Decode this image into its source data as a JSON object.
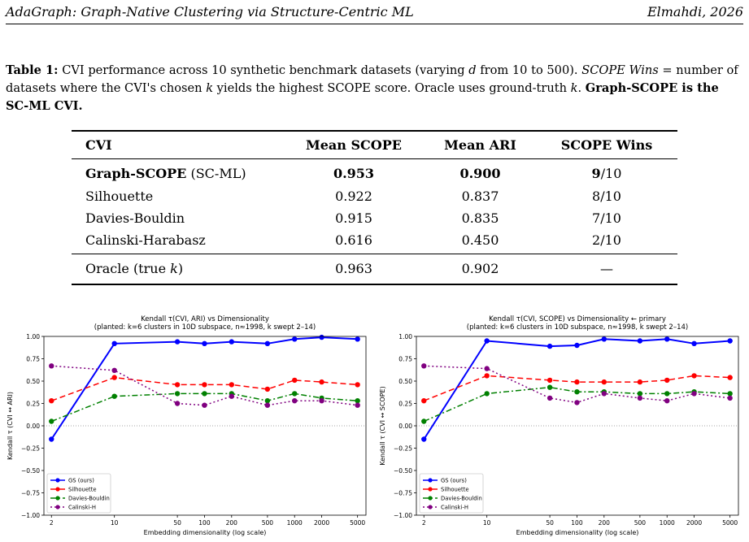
{
  "header": {
    "left": "AdaGraph: Graph-Native Clustering via Structure-Centric ML",
    "right": "Elmahdi, 2026"
  },
  "caption": {
    "label": "Table 1:",
    "t1": " CVI performance across 10 synthetic benchmark datasets (varying ",
    "d": "d",
    "t2": " from 10 to 500). ",
    "scope_wins": "SCOPE Wins",
    "t3": " = number of datasets where the CVI's chosen ",
    "k1": "k",
    "t4": " yields the highest SCOPE score. Oracle uses ground-truth ",
    "k2": "k",
    "t5": ". ",
    "bold": "Graph-SCOPE is the SC-ML CVI."
  },
  "table": {
    "headers": [
      "CVI",
      "Mean SCOPE",
      "Mean ARI",
      "SCOPE Wins"
    ],
    "rows": [
      {
        "name": "Graph-SCOPE",
        "suffix": " (SC-ML)",
        "scope": "0.953",
        "ari": "0.900",
        "wins": "9",
        "wins_suffix": "/10"
      },
      {
        "name": "Silhouette",
        "scope": "0.922",
        "ari": "0.837",
        "wins": "8/10"
      },
      {
        "name": "Davies-Bouldin",
        "scope": "0.915",
        "ari": "0.835",
        "wins": "7/10"
      },
      {
        "name": "Calinski-Harabasz",
        "scope": "0.616",
        "ari": "0.450",
        "wins": "2/10"
      }
    ],
    "oracle": {
      "name": "Oracle (true ",
      "k": "k",
      "close": ")",
      "scope": "0.963",
      "ari": "0.902",
      "wins": "—"
    }
  },
  "chart_data": [
    {
      "type": "line",
      "title": "Kendall τ(CVI, ARI) vs Dimensionality",
      "subtitle": "(planted: k=6 clusters in 10D subspace, n≈1998, k swept 2–14)",
      "xlabel": "Embedding dimensionality (log scale)",
      "ylabel": "Kendall τ  (CVI ↔ ARI)",
      "xscale": "log",
      "x": [
        2,
        10,
        50,
        100,
        200,
        500,
        1000,
        2000,
        5000
      ],
      "xticks": [
        "2",
        "10",
        "50",
        "100",
        "200",
        "500",
        "1000",
        "2000",
        "5000"
      ],
      "ylim": [
        -1.0,
        1.0
      ],
      "yticks": [
        "1.00",
        "0.75",
        "0.50",
        "0.25",
        "0.00",
        "−0.25",
        "−0.50",
        "−0.75",
        "−1.00"
      ],
      "legend_position": "lower-left",
      "series": [
        {
          "name": "GS (ours)",
          "color": "#0000ff",
          "style": "solid",
          "values": [
            -0.15,
            0.92,
            0.94,
            0.92,
            0.94,
            0.92,
            0.97,
            0.99,
            0.97
          ]
        },
        {
          "name": "Silhouette",
          "color": "#ff0000",
          "style": "dashed",
          "values": [
            0.28,
            0.54,
            0.46,
            0.46,
            0.46,
            0.41,
            0.51,
            0.49,
            0.46
          ]
        },
        {
          "name": "Davies-Bouldin",
          "color": "#008000",
          "style": "dashdot",
          "values": [
            0.05,
            0.33,
            0.36,
            0.36,
            0.36,
            0.28,
            0.36,
            0.31,
            0.28
          ]
        },
        {
          "name": "Calinski-H",
          "color": "#800080",
          "style": "dotted",
          "values": [
            0.67,
            0.62,
            0.25,
            0.23,
            0.33,
            0.23,
            0.28,
            0.28,
            0.23
          ]
        }
      ]
    },
    {
      "type": "line",
      "title": "Kendall τ(CVI, SCOPE) vs Dimensionality  ← primary",
      "subtitle": "(planted: k=6 clusters in 10D subspace, n≈1998, k swept 2–14)",
      "xlabel": "Embedding dimensionality (log scale)",
      "ylabel": "Kendall τ  (CVI ↔ SCOPE)",
      "xscale": "log",
      "x": [
        2,
        10,
        50,
        100,
        200,
        500,
        1000,
        2000,
        5000
      ],
      "xticks": [
        "2",
        "10",
        "50",
        "100",
        "200",
        "500",
        "1000",
        "2000",
        "5000"
      ],
      "ylim": [
        -1.0,
        1.0
      ],
      "yticks": [
        "1.00",
        "0.75",
        "0.50",
        "0.25",
        "0.00",
        "−0.25",
        "−0.50",
        "−0.75",
        "−1.00"
      ],
      "legend_position": "lower-left",
      "series": [
        {
          "name": "GS (ours)",
          "color": "#0000ff",
          "style": "solid",
          "values": [
            -0.15,
            0.95,
            0.89,
            0.9,
            0.97,
            0.95,
            0.97,
            0.92,
            0.95
          ]
        },
        {
          "name": "Silhouette",
          "color": "#ff0000",
          "style": "dashed",
          "values": [
            0.28,
            0.56,
            0.51,
            0.49,
            0.49,
            0.49,
            0.51,
            0.56,
            0.54
          ]
        },
        {
          "name": "Davies-Bouldin",
          "color": "#008000",
          "style": "dashdot",
          "values": [
            0.05,
            0.36,
            0.43,
            0.38,
            0.38,
            0.36,
            0.36,
            0.38,
            0.36
          ]
        },
        {
          "name": "Calinski-H",
          "color": "#800080",
          "style": "dotted",
          "values": [
            0.67,
            0.64,
            0.31,
            0.26,
            0.36,
            0.31,
            0.28,
            0.36,
            0.31
          ]
        }
      ]
    }
  ]
}
